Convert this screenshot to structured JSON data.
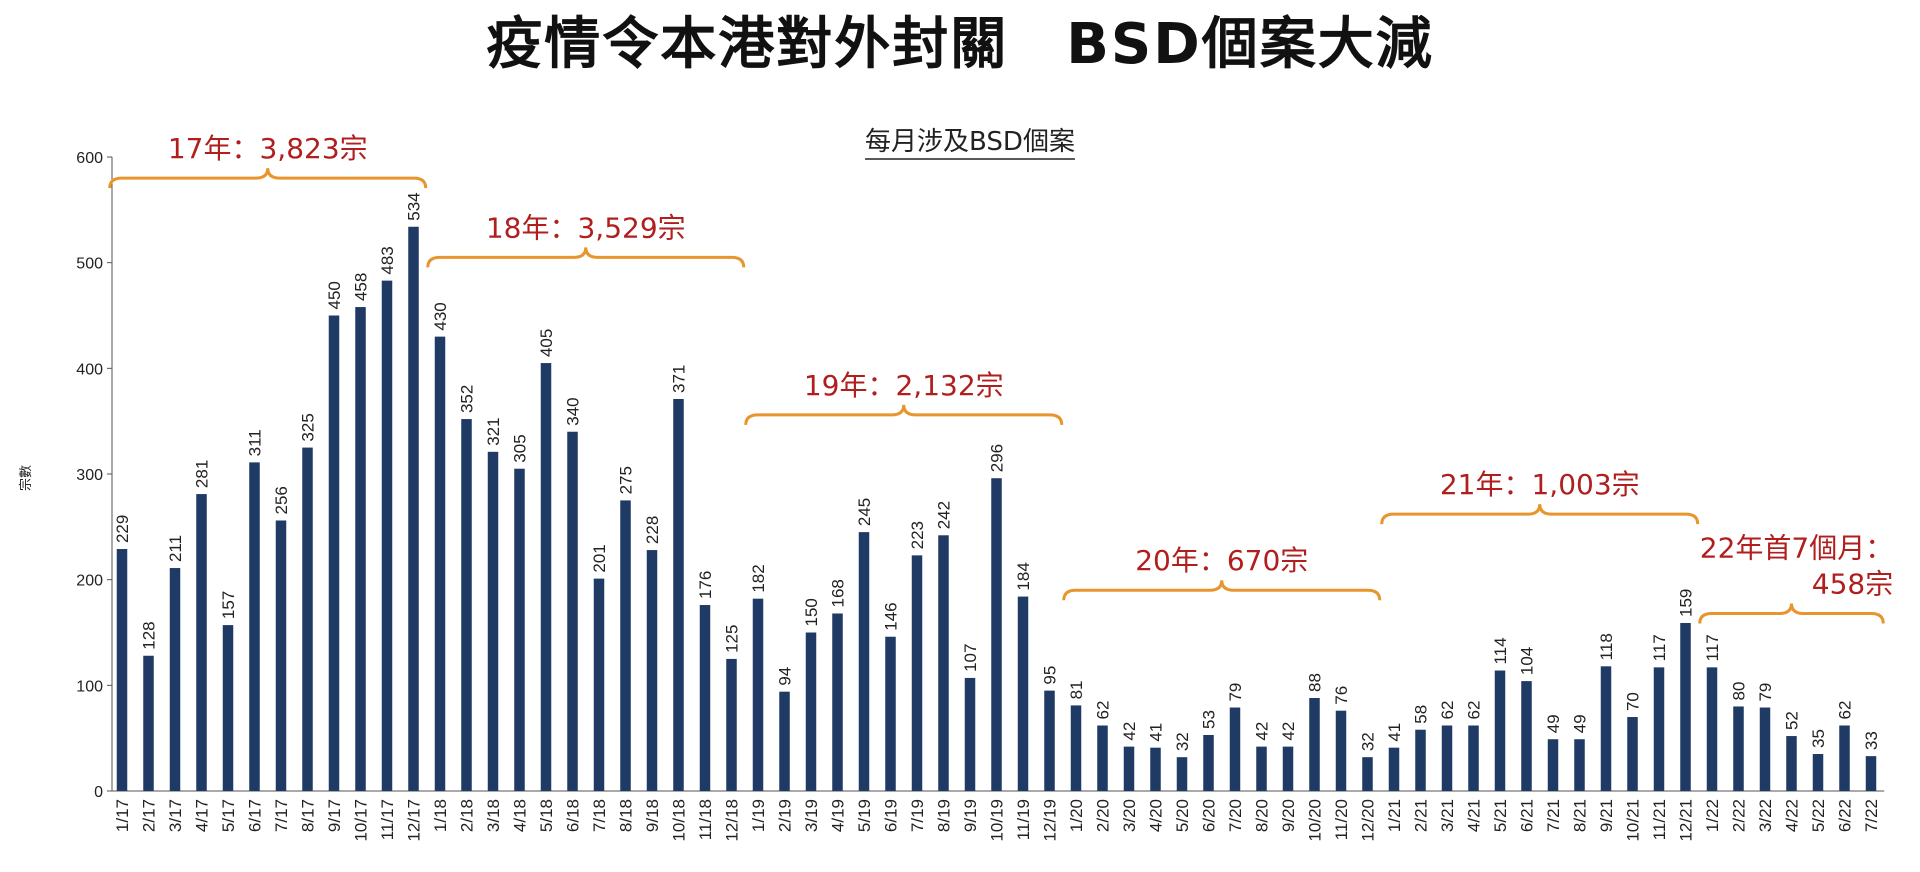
{
  "page_title": "疫情令本港對外封關　BSD個案大減",
  "chart_data": {
    "type": "bar",
    "title": "每月涉及BSD個案",
    "ylabel": "宗數",
    "ylim": [
      0,
      600
    ],
    "yticks": [
      0,
      100,
      200,
      300,
      400,
      500,
      600
    ],
    "bar_color": "#1f3a64",
    "brace_color": "#e8952e",
    "annotation_color": "#b01e1e",
    "categories": [
      "1/17",
      "2/17",
      "3/17",
      "4/17",
      "5/17",
      "6/17",
      "7/17",
      "8/17",
      "9/17",
      "10/17",
      "11/17",
      "12/17",
      "1/18",
      "2/18",
      "3/18",
      "4/18",
      "5/18",
      "6/18",
      "7/18",
      "8/18",
      "9/18",
      "10/18",
      "11/18",
      "12/18",
      "1/19",
      "2/19",
      "3/19",
      "4/19",
      "5/19",
      "6/19",
      "7/19",
      "8/19",
      "9/19",
      "10/19",
      "11/19",
      "12/19",
      "1/20",
      "2/20",
      "3/20",
      "4/20",
      "5/20",
      "6/20",
      "7/20",
      "8/20",
      "9/20",
      "10/20",
      "11/20",
      "12/20",
      "1/21",
      "2/21",
      "3/21",
      "4/21",
      "5/21",
      "6/21",
      "7/21",
      "8/21",
      "9/21",
      "10/21",
      "11/21",
      "12/21",
      "1/22",
      "2/22",
      "3/22",
      "4/22",
      "5/22",
      "6/22",
      "7/22"
    ],
    "values": [
      229,
      128,
      211,
      281,
      157,
      311,
      256,
      325,
      450,
      458,
      483,
      534,
      430,
      352,
      321,
      305,
      405,
      340,
      201,
      275,
      228,
      371,
      176,
      125,
      182,
      94,
      150,
      168,
      245,
      146,
      223,
      242,
      107,
      296,
      184,
      95,
      81,
      62,
      42,
      41,
      32,
      53,
      79,
      42,
      42,
      88,
      76,
      32,
      41,
      58,
      62,
      62,
      114,
      104,
      49,
      49,
      118,
      70,
      117,
      159,
      117,
      80,
      79,
      52,
      35,
      62,
      33
    ],
    "annotations": [
      {
        "lines": [
          "17年：3,823宗"
        ],
        "from": 0,
        "to": 11,
        "level": 580
      },
      {
        "lines": [
          "18年：3,529宗"
        ],
        "from": 12,
        "to": 23,
        "level": 505
      },
      {
        "lines": [
          "19年：2,132宗"
        ],
        "from": 24,
        "to": 35,
        "level": 356
      },
      {
        "lines": [
          "20年：670宗"
        ],
        "from": 36,
        "to": 47,
        "level": 190
      },
      {
        "lines": [
          "21年：1,003宗"
        ],
        "from": 48,
        "to": 59,
        "level": 262
      },
      {
        "lines": [
          "22年首7個月：",
          "458宗"
        ],
        "from": 60,
        "to": 66,
        "level": 168
      }
    ]
  }
}
